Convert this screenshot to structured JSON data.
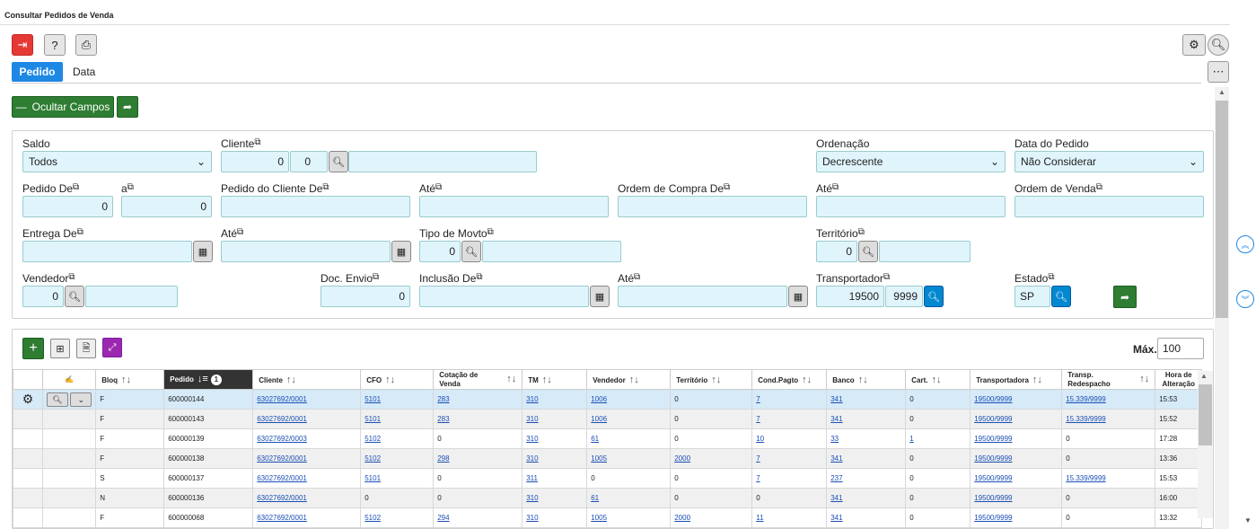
{
  "title": "Consultar Pedidos de Venda",
  "tabs": [
    "Pedido",
    "Data"
  ],
  "buttons": {
    "hide_fields": "Ocultar Campos"
  },
  "max": {
    "label": "Máx.",
    "value": "100"
  },
  "filters": {
    "saldo": {
      "label": "Saldo",
      "value": "Todos"
    },
    "cliente": {
      "label": "Cliente",
      "value1": "0",
      "value2": "0",
      "value3": ""
    },
    "ordenacao": {
      "label": "Ordenação",
      "value": "Decrescente"
    },
    "data_pedido": {
      "label": "Data do Pedido",
      "value": "Não Considerar"
    },
    "pedido_de": {
      "label": "Pedido De",
      "value": "0"
    },
    "a": {
      "label": "a",
      "value": "0"
    },
    "pedido_cliente_de": {
      "label": "Pedido do Cliente De",
      "value": ""
    },
    "ate1": {
      "label": "Até",
      "value": ""
    },
    "ordem_compra_de": {
      "label": "Ordem de Compra De",
      "value": ""
    },
    "ate2": {
      "label": "Até",
      "value": ""
    },
    "ordem_venda": {
      "label": "Ordem de Venda",
      "value": ""
    },
    "entrega_de": {
      "label": "Entrega De",
      "value": ""
    },
    "ate3": {
      "label": "Até",
      "value": ""
    },
    "tipo_movto": {
      "label": "Tipo de Movto",
      "value": "0"
    },
    "territorio": {
      "label": "Território",
      "value": "0"
    },
    "vendedor": {
      "label": "Vendedor",
      "value": "0"
    },
    "doc_envio": {
      "label": "Doc. Envio",
      "value": "0"
    },
    "inclusao_de": {
      "label": "Inclusão De",
      "value": ""
    },
    "ate4": {
      "label": "Até",
      "value": ""
    },
    "transportador": {
      "label": "Transportador",
      "value1": "19500",
      "value2": "9999"
    },
    "estado": {
      "label": "Estado",
      "value": "SP"
    }
  },
  "columns": [
    "Bloq",
    "Pedido",
    "Cliente",
    "CFO",
    "Cotação de Venda",
    "TM",
    "Vendedor",
    "Território",
    "Cond.Pagto",
    "Banco",
    "Cart.",
    "Transportadora",
    "Transp. Redespacho",
    "Hora de Alteração"
  ],
  "sort_badge": "1",
  "rows": [
    [
      "F",
      "600000144",
      "63027692/0001",
      "5101",
      "283",
      "310",
      "1006",
      "0",
      "7",
      "341",
      "0",
      "19500/9999",
      "15.339/9999",
      "15:53"
    ],
    [
      "F",
      "600000143",
      "63027692/0001",
      "5101",
      "283",
      "310",
      "1006",
      "0",
      "7",
      "341",
      "0",
      "19500/9999",
      "15.339/9999",
      "15:52"
    ],
    [
      "F",
      "600000139",
      "63027692/0003",
      "5102",
      "0",
      "310",
      "61",
      "0",
      "10",
      "33",
      "1",
      "19500/9999",
      "0",
      "17:28"
    ],
    [
      "F",
      "600000138",
      "63027692/0001",
      "5102",
      "298",
      "310",
      "1005",
      "2000",
      "7",
      "341",
      "0",
      "19500/9999",
      "0",
      "13:36"
    ],
    [
      "S",
      "600000137",
      "63027692/0001",
      "5101",
      "0",
      "311",
      "0",
      "0",
      "7",
      "237",
      "0",
      "19500/9999",
      "15.339/9999",
      "15:53"
    ],
    [
      "N",
      "600000136",
      "63027692/0001",
      "0",
      "0",
      "310",
      "61",
      "0",
      "0",
      "341",
      "0",
      "19500/9999",
      "0",
      "16:00"
    ],
    [
      "F",
      "600000068",
      "63027692/0001",
      "5102",
      "294",
      "310",
      "1005",
      "2000",
      "11",
      "341",
      "0",
      "19500/9999",
      "0",
      "13:32"
    ]
  ],
  "links": [
    [
      0,
      0,
      1,
      1,
      1,
      1,
      1,
      0,
      1,
      1,
      0,
      1,
      1,
      0
    ],
    [
      0,
      0,
      1,
      1,
      1,
      1,
      1,
      0,
      1,
      1,
      0,
      1,
      1,
      0
    ],
    [
      0,
      0,
      1,
      1,
      0,
      1,
      1,
      0,
      1,
      1,
      1,
      1,
      0,
      0
    ],
    [
      0,
      0,
      1,
      1,
      1,
      1,
      1,
      1,
      1,
      1,
      0,
      1,
      0,
      0
    ],
    [
      0,
      0,
      1,
      1,
      0,
      1,
      0,
      0,
      1,
      1,
      0,
      1,
      1,
      0
    ],
    [
      0,
      0,
      1,
      0,
      0,
      1,
      1,
      0,
      0,
      1,
      0,
      1,
      0,
      0
    ],
    [
      0,
      0,
      1,
      1,
      1,
      1,
      1,
      1,
      1,
      1,
      0,
      1,
      0,
      0
    ]
  ]
}
